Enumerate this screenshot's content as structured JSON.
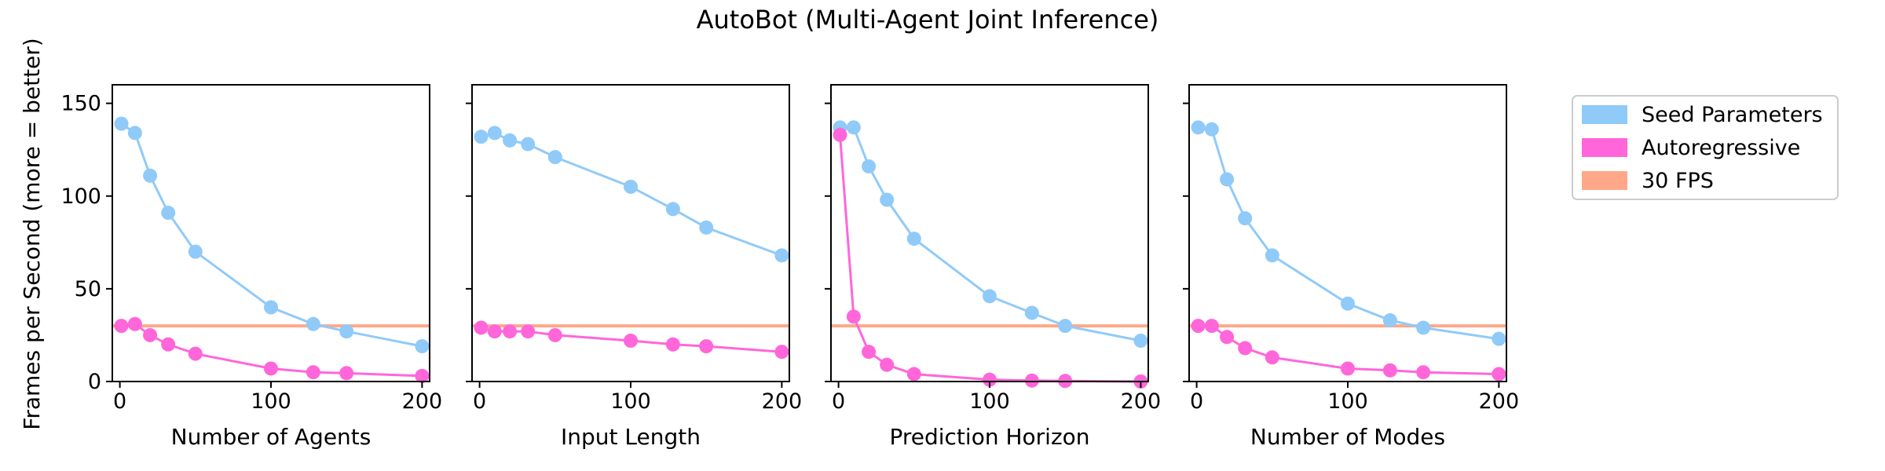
{
  "title": "AutoBot (Multi-Agent Joint Inference)",
  "ylabel": "Frames per Second (more = better)",
  "legend": {
    "placement": "right-outside",
    "items": [
      {
        "label": "Seed Parameters",
        "color": "#90CAF9"
      },
      {
        "label": "Autoregressive",
        "color": "#FF66DA"
      },
      {
        "label": "30 FPS",
        "color": "#FFA889"
      }
    ]
  },
  "colors": {
    "seed": "#90CAF9",
    "autoregressive": "#FF66DA",
    "fps30": "#FFA889"
  },
  "chart_data": [
    {
      "type": "line",
      "xlabel": "Number of Agents",
      "xlim": [
        -5,
        205
      ],
      "ylim": [
        0,
        160
      ],
      "xticks": [
        0,
        100,
        200
      ],
      "yticks": [
        0,
        50,
        100,
        150
      ],
      "hline": 30,
      "series": [
        {
          "name": "Seed Parameters",
          "x": [
            1,
            10,
            20,
            32,
            50,
            100,
            128,
            150,
            200
          ],
          "y": [
            139,
            134,
            111,
            91,
            70,
            40,
            31,
            27,
            19
          ]
        },
        {
          "name": "Autoregressive",
          "x": [
            1,
            10,
            20,
            32,
            50,
            100,
            128,
            150,
            200
          ],
          "y": [
            30,
            31,
            25,
            20,
            15,
            7,
            5,
            4.5,
            3
          ]
        }
      ]
    },
    {
      "type": "line",
      "xlabel": "Input Length",
      "xlim": [
        -5,
        205
      ],
      "ylim": [
        0,
        160
      ],
      "xticks": [
        0,
        100,
        200
      ],
      "yticks": [
        0,
        50,
        100,
        150
      ],
      "hline": 30,
      "series": [
        {
          "name": "Seed Parameters",
          "x": [
            1,
            10,
            20,
            32,
            50,
            100,
            128,
            150,
            200
          ],
          "y": [
            132,
            134,
            130,
            128,
            121,
            105,
            93,
            83,
            68
          ]
        },
        {
          "name": "Autoregressive",
          "x": [
            1,
            10,
            20,
            32,
            50,
            100,
            128,
            150,
            200
          ],
          "y": [
            29,
            27,
            27,
            27,
            25,
            22,
            20,
            19,
            16
          ]
        }
      ]
    },
    {
      "type": "line",
      "xlabel": "Prediction Horizon",
      "xlim": [
        -5,
        205
      ],
      "ylim": [
        0,
        160
      ],
      "xticks": [
        0,
        100,
        200
      ],
      "yticks": [
        0,
        50,
        100,
        150
      ],
      "hline": 30,
      "series": [
        {
          "name": "Seed Parameters",
          "x": [
            1,
            10,
            20,
            32,
            50,
            100,
            128,
            150,
            200
          ],
          "y": [
            137,
            137,
            116,
            98,
            77,
            46,
            37,
            30,
            22
          ]
        },
        {
          "name": "Autoregressive",
          "x": [
            1,
            10,
            20,
            32,
            50,
            100,
            128,
            150,
            200
          ],
          "y": [
            133,
            35,
            16,
            9,
            4,
            1,
            0.5,
            0.3,
            0
          ]
        }
      ]
    },
    {
      "type": "line",
      "xlabel": "Number of Modes",
      "xlim": [
        -5,
        205
      ],
      "ylim": [
        0,
        160
      ],
      "xticks": [
        0,
        100,
        200
      ],
      "yticks": [
        0,
        50,
        100,
        150
      ],
      "hline": 30,
      "series": [
        {
          "name": "Seed Parameters",
          "x": [
            1,
            10,
            20,
            32,
            50,
            100,
            128,
            150,
            200
          ],
          "y": [
            137,
            136,
            109,
            88,
            68,
            42,
            33,
            29,
            23
          ]
        },
        {
          "name": "Autoregressive",
          "x": [
            1,
            10,
            20,
            32,
            50,
            100,
            128,
            150,
            200
          ],
          "y": [
            30,
            30,
            24,
            18,
            13,
            7,
            6,
            5,
            4
          ]
        }
      ]
    }
  ]
}
